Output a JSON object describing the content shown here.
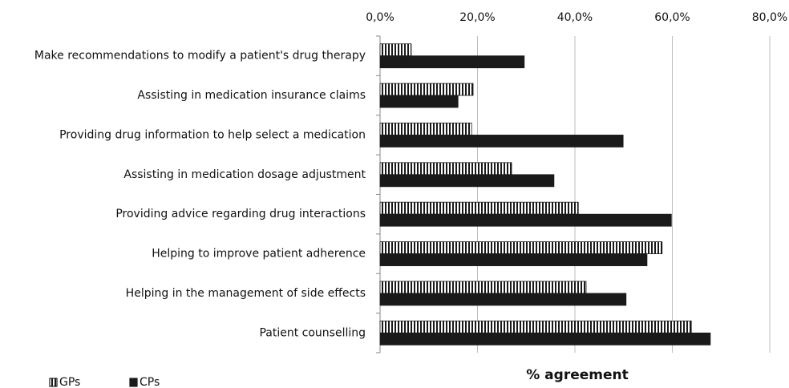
{
  "chart_data": {
    "type": "hbar",
    "x_label": "% agreement",
    "categories": [
      "Make recommendations to modify a patient's drug therapy",
      "Assisting in medication insurance claims",
      "Providing drug information to help select a medication",
      "Assisting in medication dosage adjustment",
      "Providing advice regarding drug interactions",
      "Helping to improve patient adherence",
      "Helping in the management of side effects",
      "Patient counselling"
    ],
    "series": [
      {
        "name": "GPs",
        "color": "#1a1a1a",
        "hatch": "vertical",
        "values": [
          6.4,
          19.1,
          18.8,
          27.0,
          40.7,
          57.9,
          42.3,
          63.9
        ]
      },
      {
        "name": "CPs",
        "color": "#1a1a1a",
        "values": [
          29.6,
          16.0,
          49.9,
          35.7,
          59.8,
          54.8,
          50.5,
          67.8
        ]
      }
    ],
    "xlim": [
      0,
      80
    ],
    "xticks": [
      {
        "value": 0,
        "label": "0,0%"
      },
      {
        "value": 20,
        "label": "20,0%"
      },
      {
        "value": 40,
        "label": "40,0%"
      },
      {
        "value": 60,
        "label": "60,0%"
      },
      {
        "value": 80,
        "label": "80,0%"
      }
    ],
    "grid": true,
    "legend": "bottom-left"
  }
}
